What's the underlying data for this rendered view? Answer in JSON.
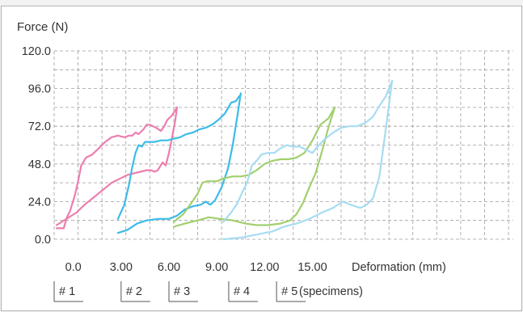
{
  "chart_data": {
    "type": "line",
    "ylabel": "Force (N)",
    "xlabel": "Deformation (mm)",
    "yticks": [
      "0.0",
      "24.0",
      "48.0",
      "72.0",
      "96.0",
      "120.0"
    ],
    "xticks": [
      "0.0",
      "3.00",
      "6.00",
      "9.00",
      "12.00",
      "15.00"
    ],
    "xlim": [
      -1.2,
      27.6
    ],
    "ylim": [
      0,
      120
    ],
    "grid": true,
    "specimens_label": "(specimens)",
    "specimens": [
      "# 1",
      "# 2",
      "# 3",
      "# 4",
      "# 5"
    ],
    "series": [
      {
        "color": "#ec7eaf",
        "x": [
          -1.05,
          -0.6,
          -0.4,
          -0.2,
          0.1,
          0.3,
          0.5,
          0.8,
          1.2,
          1.6,
          2.0,
          2.4,
          2.8,
          3.2,
          3.5,
          3.7,
          3.9,
          4.1,
          4.4,
          4.6,
          4.8,
          5.0,
          5.2,
          5.5,
          5.7,
          5.9,
          6.2,
          6.5
        ],
        "y": [
          7,
          7,
          14,
          18,
          28,
          37,
          47,
          52,
          54,
          58,
          62,
          65,
          66,
          65,
          66,
          66,
          68,
          67,
          70,
          73,
          73,
          72,
          71,
          69,
          72,
          76,
          79,
          84
        ]
      },
      {
        "color": "#ec7eaf",
        "x": [
          -1.05,
          0.2,
          0.7,
          1.2,
          1.8,
          2.4,
          3.0,
          3.4,
          3.8,
          4.2,
          4.6,
          4.9,
          5.1,
          5.3,
          5.6,
          5.8,
          6.0,
          6.2,
          6.4,
          6.5
        ],
        "y": [
          9,
          17,
          22,
          26,
          31,
          36,
          39,
          41,
          42,
          43,
          44,
          44,
          43,
          44,
          49,
          47,
          55,
          65,
          76,
          84
        ]
      },
      {
        "color": "#3dbbe8",
        "x": [
          2.8,
          3.2,
          3.5,
          3.7,
          3.9,
          4.1,
          4.3,
          4.5,
          4.8,
          5.1,
          5.5,
          5.9,
          6.3,
          6.7,
          7.1,
          7.5,
          7.9,
          8.3,
          8.7,
          9.1,
          9.5,
          9.9,
          10.2,
          10.4,
          10.5
        ],
        "y": [
          13,
          22,
          35,
          46,
          55,
          60,
          59,
          62,
          62,
          62,
          63,
          63,
          64,
          65,
          67,
          68,
          70,
          71,
          73,
          76,
          80,
          87,
          88,
          91,
          92
        ]
      },
      {
        "color": "#3dbbe8",
        "x": [
          2.8,
          3.4,
          4.0,
          4.6,
          5.3,
          6.0,
          6.5,
          7.0,
          7.5,
          8.0,
          8.3,
          8.6,
          8.9,
          9.3,
          9.7,
          10.0,
          10.3,
          10.5
        ],
        "y": [
          4,
          6,
          10,
          12,
          13,
          13,
          15,
          19,
          21,
          22,
          24,
          22,
          25,
          33,
          45,
          60,
          79,
          93
        ]
      },
      {
        "color": "#a2cf6e",
        "x": [
          6.3,
          6.9,
          7.4,
          7.8,
          8.1,
          8.4,
          8.7,
          9.0,
          9.5,
          10.0,
          10.5,
          11.0,
          11.5,
          12.0,
          12.5,
          13.0,
          13.5,
          14.0,
          14.5,
          15.0,
          15.5,
          16.0,
          16.4
        ],
        "y": [
          11,
          16,
          23,
          29,
          36,
          37,
          37,
          37,
          39,
          40,
          40,
          41,
          44,
          48,
          50,
          51,
          51,
          52,
          55,
          63,
          73,
          77,
          84
        ]
      },
      {
        "color": "#a2cf6e",
        "x": [
          6.3,
          7.0,
          7.8,
          8.5,
          9.2,
          10.0,
          10.8,
          11.5,
          12.2,
          13.0,
          13.6,
          14.0,
          14.4,
          14.8,
          15.2,
          15.6,
          16.0,
          16.4
        ],
        "y": [
          8,
          10,
          12,
          14,
          13,
          12,
          10,
          9,
          9,
          10,
          12,
          16,
          23,
          33,
          42,
          56,
          71,
          84
        ]
      },
      {
        "color": "#a7dcf2",
        "x": [
          9.4,
          9.9,
          10.3,
          10.6,
          10.9,
          11.2,
          11.5,
          11.8,
          12.2,
          12.6,
          13.0,
          13.4,
          13.8,
          14.2,
          14.6,
          15.0,
          15.4,
          15.8,
          16.3,
          16.8,
          17.3,
          17.8,
          18.3,
          18.8,
          19.2,
          19.6,
          20.0
        ],
        "y": [
          11,
          17,
          23,
          30,
          36,
          47,
          50,
          54,
          55,
          55,
          58,
          60,
          59,
          59,
          57,
          55,
          60,
          64,
          68,
          71,
          72,
          72,
          74,
          78,
          85,
          91,
          101
        ]
      },
      {
        "color": "#a7dcf2",
        "x": [
          9.4,
          10.5,
          11.5,
          12.5,
          13.2,
          14.0,
          14.8,
          15.6,
          16.3,
          16.9,
          17.4,
          18.0,
          18.4,
          18.8,
          19.2,
          19.6,
          20.0
        ],
        "y": [
          0,
          1,
          3,
          5,
          8,
          10,
          13,
          17,
          20,
          24,
          22,
          20,
          22,
          26,
          40,
          70,
          101
        ]
      }
    ]
  }
}
